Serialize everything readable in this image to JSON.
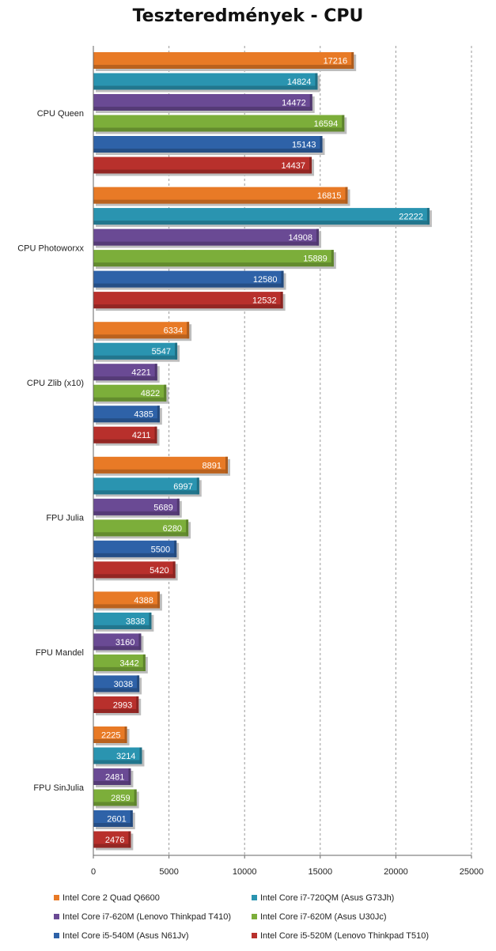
{
  "chart_data": {
    "type": "bar",
    "orientation": "horizontal",
    "title": "Teszteredmények - CPU",
    "categories": [
      "CPU Queen",
      "CPU Photoworxx",
      "CPU Zlib (x10)",
      "FPU Julia",
      "FPU Mandel",
      "FPU SinJulia"
    ],
    "series": [
      {
        "name": "Intel Core 2 Quad Q6600",
        "color": "#e87a26",
        "values": [
          17216,
          16815,
          6334,
          8891,
          4388,
          2225
        ]
      },
      {
        "name": "Intel Core i7-720QM (Asus G73Jh)",
        "color": "#2a94b0",
        "values": [
          14824,
          22222,
          5547,
          6997,
          3838,
          3214
        ]
      },
      {
        "name": "Intel Core i7-620M (Lenovo Thinkpad T410)",
        "color": "#6a4a94",
        "values": [
          14472,
          14908,
          4221,
          5689,
          3160,
          2481
        ]
      },
      {
        "name": "Intel Core i7-620M (Asus U30Jc)",
        "color": "#7cae3a",
        "values": [
          16594,
          15889,
          4822,
          6280,
          3442,
          2859
        ]
      },
      {
        "name": "Intel Core i5-540M (Asus N61Jv)",
        "color": "#2e62a8",
        "values": [
          15143,
          12580,
          4385,
          5500,
          3038,
          2601
        ]
      },
      {
        "name": "Intel Core i5-520M (Lenovo Thinkpad T510)",
        "color": "#b8302c",
        "values": [
          14437,
          12532,
          4211,
          5420,
          2993,
          2476
        ]
      }
    ],
    "xlim": [
      0,
      25000
    ],
    "xticks": [
      0,
      5000,
      10000,
      15000,
      20000,
      25000
    ],
    "grid": "vertical dashed",
    "legend": "bottom"
  }
}
